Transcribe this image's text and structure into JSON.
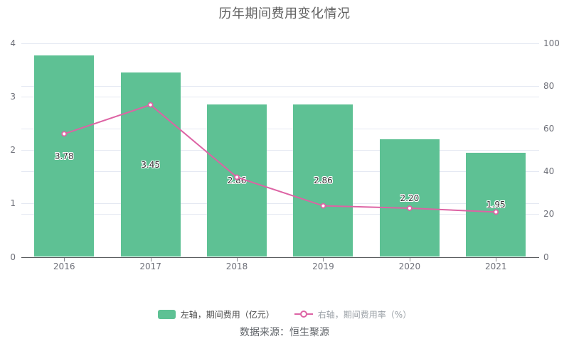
{
  "title": "历年期间费用变化情况",
  "source": "数据来源：恒生聚源",
  "colors": {
    "bar": "#5ec194",
    "line": "#dd63a4",
    "grid": "#e4e8f2",
    "axis_line": "#56585c",
    "axis_label": "#6e7079",
    "bar_label_text": "#333333",
    "legend_bar_text": "#4a4a4a",
    "legend_line_text": "#9aa0a6"
  },
  "chart_data": {
    "type": "bar",
    "title": "历年期间费用变化情况",
    "categories": [
      "2016",
      "2017",
      "2018",
      "2019",
      "2020",
      "2021"
    ],
    "series": [
      {
        "name": "左轴，期间费用（亿元）",
        "type": "bar",
        "axis": "left",
        "values": [
          3.78,
          3.45,
          2.86,
          2.86,
          2.2,
          1.95
        ],
        "value_labels": [
          "3.78",
          "3.45",
          "2.86",
          "2.86",
          "2.20",
          "1.95"
        ]
      },
      {
        "name": "右轴，期间费用率（%）",
        "type": "line",
        "axis": "right",
        "values": [
          57.6,
          71.2,
          37.3,
          23.9,
          22.8,
          21.0
        ]
      }
    ],
    "left_axis": {
      "min": 0,
      "max": 4,
      "ticks": [
        0,
        1,
        2,
        3,
        4
      ]
    },
    "right_axis": {
      "min": 0,
      "max": 100,
      "ticks": [
        0,
        20,
        40,
        60,
        80,
        100
      ]
    },
    "grid": true,
    "legend_position": "bottom"
  }
}
